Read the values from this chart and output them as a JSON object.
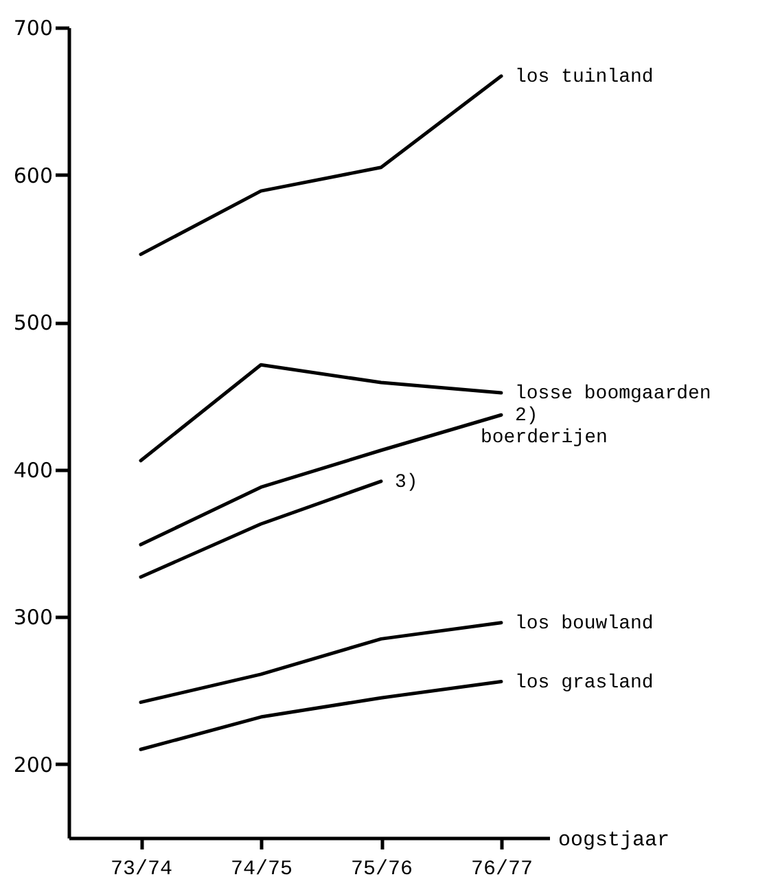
{
  "chart_data": {
    "type": "line",
    "xlabel": "oogstjaar",
    "categories": [
      "73/74",
      "74/75",
      "75/76",
      "76/77"
    ],
    "series": [
      {
        "name": "los tuinland",
        "color": "#000000",
        "values": [
          546,
          589,
          605,
          667
        ]
      },
      {
        "name": "losse boomgaarden",
        "color": "#000000",
        "values": [
          406,
          471,
          459,
          452
        ]
      },
      {
        "name": "2)",
        "color": "#000000",
        "values": [
          349,
          388,
          413,
          437
        ]
      },
      {
        "name": "3)",
        "color": "#000000",
        "values": [
          327,
          363,
          392,
          null
        ]
      },
      {
        "name": "los bouwland",
        "color": "#000000",
        "values": [
          242,
          261,
          285,
          296
        ]
      },
      {
        "name": "los grasland",
        "color": "#000000",
        "values": [
          210,
          232,
          245,
          256
        ]
      }
    ],
    "annotations": [
      "boerderijen"
    ],
    "ylim": [
      150,
      700
    ],
    "yticks": [
      200,
      300,
      400,
      500,
      600,
      700
    ],
    "grid": false,
    "legend": false,
    "marker": "none",
    "line_style": "solid"
  }
}
